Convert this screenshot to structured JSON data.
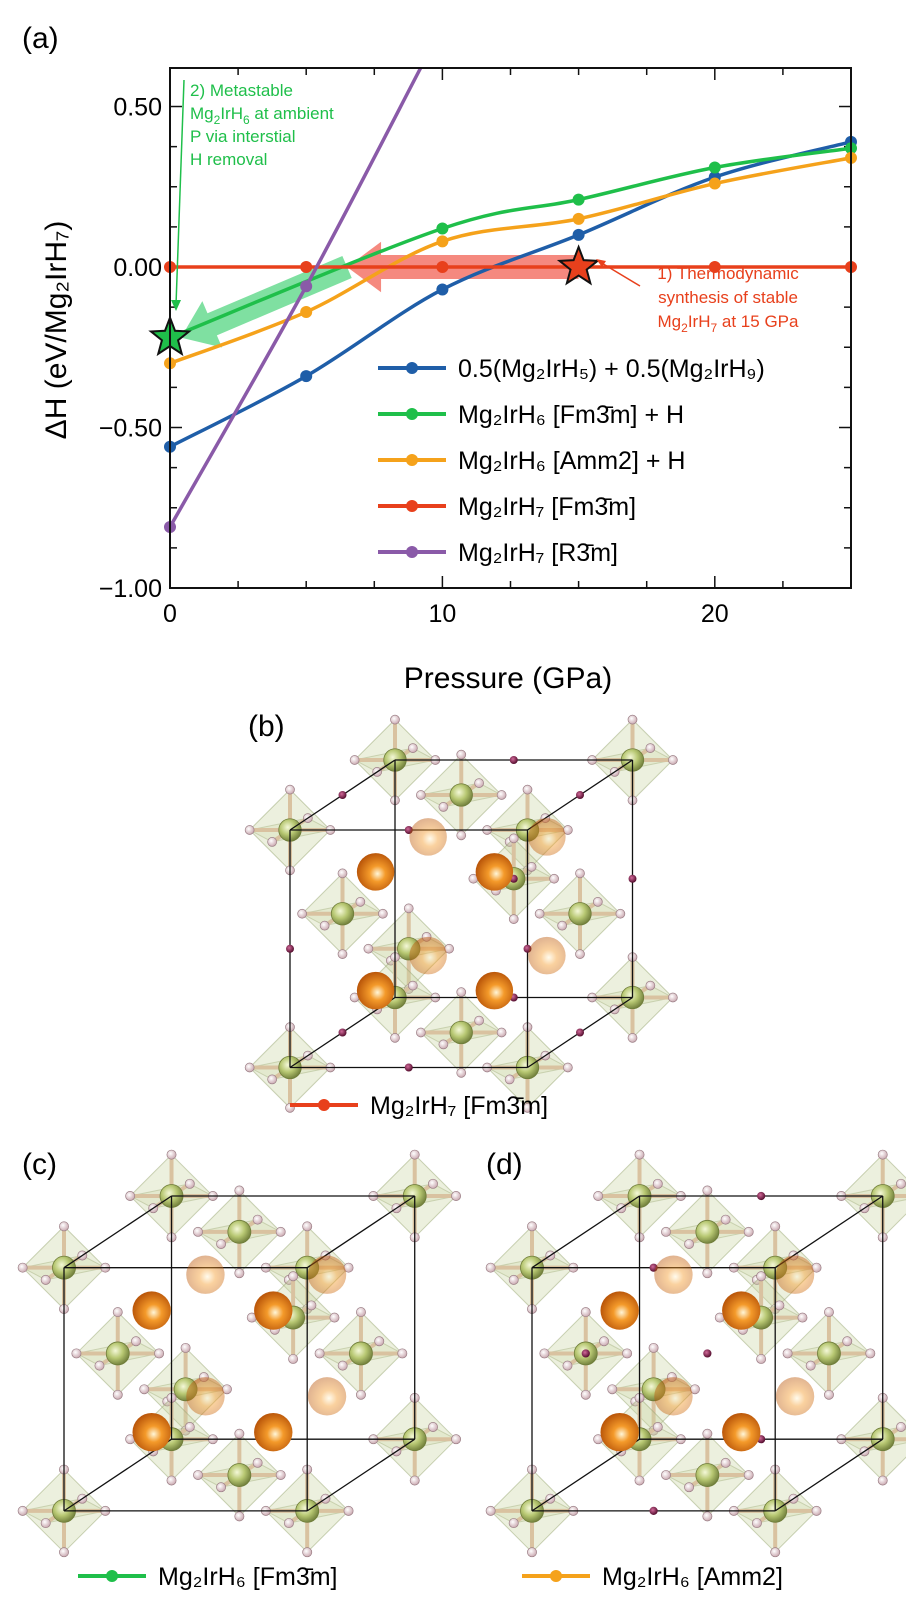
{
  "panels": {
    "a": "(a)",
    "b": "(b)",
    "c": "(c)",
    "d": "(d)"
  },
  "chart_data": {
    "type": "line",
    "xlabel": "Pressure (GPa)",
    "ylabel": "ΔH (eV/Mg₂IrH₇)",
    "xlim": [
      0,
      25
    ],
    "ylim": [
      -1.0,
      0.62
    ],
    "xticks": [
      0,
      10,
      20
    ],
    "yticks": [
      0.5,
      0.0,
      -0.5,
      -1.0
    ],
    "xtick_labels": [
      "0",
      "10",
      "20"
    ],
    "ytick_labels": [
      "0.50",
      "0.00",
      "−0.50",
      "−1.00"
    ],
    "series": [
      {
        "key": "mg2irh5_h9",
        "name": "0.5(Mg₂IrH₅) + 0.5(Mg₂IrH₉)",
        "color": "#1f5ea8",
        "x": [
          0,
          5,
          10,
          15,
          20,
          25
        ],
        "y": [
          -0.56,
          -0.34,
          -0.07,
          0.1,
          0.28,
          0.39
        ]
      },
      {
        "key": "h6_fm3m",
        "name": "Mg₂IrH₆ [Fm3̄m] + H",
        "color": "#1fbf4a",
        "x": [
          0,
          10,
          15,
          20,
          25
        ],
        "y": [
          -0.22,
          0.12,
          0.21,
          0.31,
          0.37
        ]
      },
      {
        "key": "h6_amm2",
        "name": "Mg₂IrH₆ [Amm2] + H",
        "color": "#f5a21b",
        "x": [
          0,
          5,
          10,
          15,
          20,
          25
        ],
        "y": [
          -0.3,
          -0.14,
          0.08,
          0.15,
          0.26,
          0.34
        ]
      },
      {
        "key": "h7_fm3m",
        "name": "Mg₂IrH₇ [Fm3̄m]",
        "color": "#e8401c",
        "x": [
          0,
          5,
          10,
          15,
          20,
          25
        ],
        "y": [
          0,
          0,
          0,
          0,
          0,
          0
        ]
      },
      {
        "key": "h7_r3m",
        "name": "Mg₂IrH₇ [R3̄m]",
        "color": "#8a5aa8",
        "x": [
          0,
          5,
          9.2
        ],
        "y": [
          -0.81,
          -0.06,
          0.62
        ]
      }
    ],
    "stars": [
      {
        "name": "stable-synthesis-star",
        "x": 15,
        "y": 0,
        "color": "#e8401c"
      },
      {
        "name": "metastable-star",
        "x": 0,
        "y": -0.22,
        "color": "#1fbf4a"
      }
    ],
    "arrows": [
      {
        "name": "synthesis-path-arrow",
        "from": [
          15,
          0
        ],
        "to": [
          6.5,
          0
        ],
        "color": "#f36b5f"
      },
      {
        "name": "h-removal-arrow",
        "from": [
          6.5,
          0
        ],
        "to": [
          0.4,
          -0.22
        ],
        "color": "#5fd88a"
      }
    ],
    "annotations": {
      "thermo_l1": "1) Thermodynamic",
      "thermo_l2": "synthesis of stable",
      "thermo_l3_pre": "Mg",
      "thermo_l3_sub": "2",
      "thermo_l3_mid": "IrH",
      "thermo_l3_sub2": "7",
      "thermo_l3_post": " at 15 GPa",
      "meta_l1": "2) Metastable",
      "meta_l2_pre": "Mg",
      "meta_l2_sub": "2",
      "meta_l2_mid": "IrH",
      "meta_l2_sub2": "6",
      "meta_l2_post": " at ambient",
      "meta_l3": "P via interstial",
      "meta_l4": "H removal"
    }
  },
  "structure_legends": {
    "b": "Mg₂IrH₇ [Fm3̄m]",
    "c": "Mg₂IrH₆ [Fm3̄m]",
    "d": "Mg₂IrH₆ [Amm2]"
  },
  "colors": {
    "mg_sphere": "#f07a10",
    "ir_sphere": "#b8c873",
    "h_sphere": "#f0d8dc",
    "interstitial_h": "#7a1040",
    "octahedron": "#c9d5a0"
  }
}
